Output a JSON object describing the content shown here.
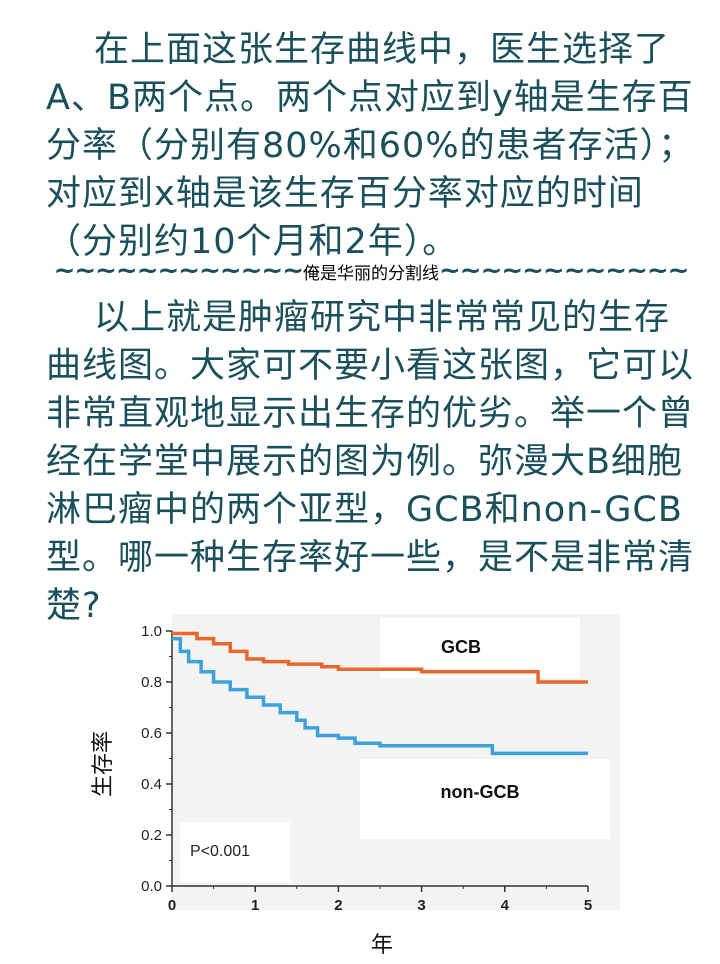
{
  "paragraph1": "在上面这张生存曲线中，医生选择了A、B两个点。两个点对应到y轴是生存百分率（分别有80%和60%的患者存活）；对应到x轴是该生存百分率对应的时间（分别约10个月和2年）。",
  "divider": {
    "left": "~~~~~~~~~~~~",
    "middle": "俺是华丽的分割线",
    "right": "~~~~~~~~~~~~"
  },
  "paragraph2": "以上就是肿瘤研究中非常常见的生存曲线图。大家可不要小看这张图，它可以非常直观地显示出生存的优劣。举一个曾经在学堂中展示的图为例。弥漫大B细胞淋巴瘤中的两个亚型，GCB和non-GCB型。哪一种生存率好一些，是不是非常清楚?",
  "colors": {
    "text": "#1a4f5c",
    "gcb": "#e8682a",
    "non_gcb": "#3ea2da"
  },
  "chart_data": {
    "type": "line",
    "xlabel": "年",
    "ylabel": "生存率",
    "xlim": [
      0,
      5
    ],
    "ylim": [
      0,
      1.0
    ],
    "x_ticks": [
      "0",
      "1",
      "2",
      "3",
      "4",
      "5"
    ],
    "y_ticks": [
      "0.0",
      "0.2",
      "0.4",
      "0.6",
      "0.8",
      "1.0"
    ],
    "annotation": "P<0.001",
    "grid": false,
    "series": [
      {
        "name": "GCB",
        "x": [
          0,
          0.3,
          0.5,
          0.7,
          0.9,
          1.1,
          1.4,
          1.8,
          2.0,
          2.5,
          3.0,
          3.8,
          4.35,
          4.4,
          5.0
        ],
        "y": [
          0.99,
          0.97,
          0.95,
          0.92,
          0.89,
          0.88,
          0.87,
          0.86,
          0.85,
          0.85,
          0.84,
          0.84,
          0.84,
          0.8,
          0.8
        ]
      },
      {
        "name": "non-GCB",
        "x": [
          0,
          0.1,
          0.2,
          0.35,
          0.5,
          0.7,
          0.9,
          1.1,
          1.3,
          1.5,
          1.6,
          1.75,
          2.0,
          2.2,
          2.5,
          3.0,
          3.8,
          3.85,
          4.2,
          5.0
        ],
        "y": [
          0.97,
          0.92,
          0.88,
          0.84,
          0.8,
          0.77,
          0.74,
          0.71,
          0.68,
          0.65,
          0.62,
          0.59,
          0.58,
          0.56,
          0.55,
          0.55,
          0.55,
          0.52,
          0.52,
          0.52
        ]
      }
    ]
  }
}
